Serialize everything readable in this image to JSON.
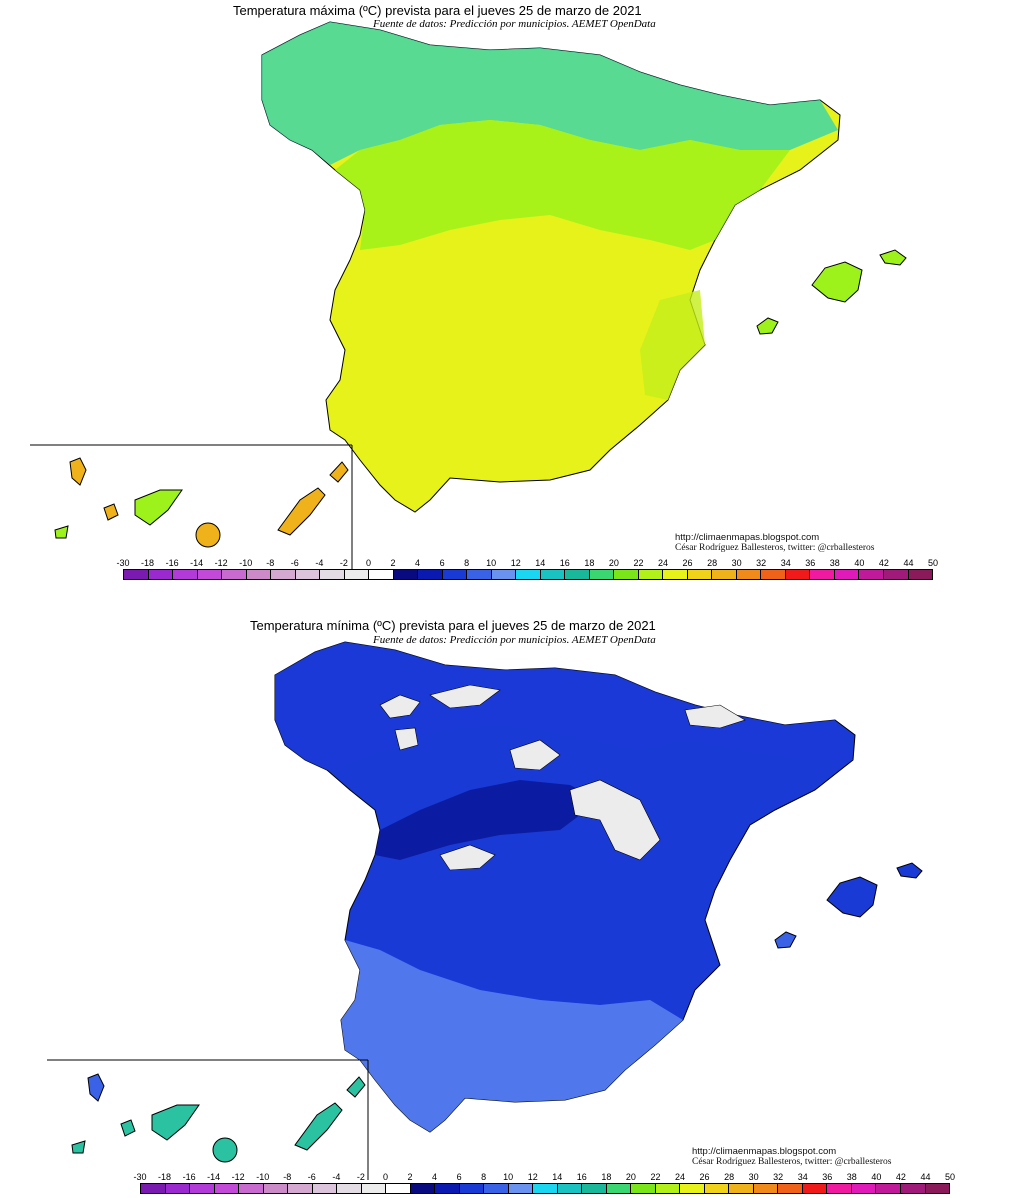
{
  "maps": [
    {
      "title": "Temperatura máxima (ºC) prevista para el jueves 25 de marzo de 2021",
      "subtitle": "Fuente de datos: Predicción por municipios. AEMET OpenData",
      "credit_url": "http://climaenmapas.blogspot.com",
      "credit_author": "César Rodríguez Ballesteros, twitter: @crballesteros",
      "dominant_ranges": [
        "14",
        "16",
        "18",
        "20",
        "22",
        "24",
        "26"
      ],
      "colors": {
        "peninsula_main": "#e6f21a",
        "north": "#3fd6a8",
        "mid": "#9cf21a",
        "canarias": "#f0b21a"
      }
    },
    {
      "title": "Temperatura mínima (ºC) prevista para el jueves 25 de marzo de 2021",
      "subtitle": "Fuente de datos: Predicción por municipios. AEMET OpenData",
      "credit_url": "http://climaenmapas.blogspot.com",
      "credit_author": "César Rodríguez Ballesteros, twitter: @crballesteros",
      "dominant_ranges": [
        "-2",
        "0",
        "2",
        "4",
        "6",
        "8"
      ],
      "colors": {
        "peninsula_main": "#1a3ad6",
        "north": "#0a1a9c",
        "south": "#5a84f0",
        "canarias": "#2ac2a0"
      }
    }
  ],
  "legend": {
    "ticks": [
      "-30",
      "-18",
      "-16",
      "-14",
      "-12",
      "-10",
      "-8",
      "-6",
      "-4",
      "-2",
      "0",
      "2",
      "4",
      "6",
      "8",
      "10",
      "12",
      "14",
      "16",
      "18",
      "20",
      "22",
      "24",
      "26",
      "28",
      "30",
      "32",
      "34",
      "36",
      "38",
      "40",
      "42",
      "44",
      "50"
    ],
    "colors": [
      "#7a1ab0",
      "#9a2ad0",
      "#b23ad8",
      "#c34ad8",
      "#c86ad0",
      "#cc8ac8",
      "#d4a8d0",
      "#dcc4dc",
      "#e4dce4",
      "#ececec",
      "#ffffff",
      "#0a0a80",
      "#0a1ab0",
      "#1a3ad6",
      "#3a62e6",
      "#6a92f0",
      "#1ad6f0",
      "#1ac2c2",
      "#1ab89a",
      "#3ad672",
      "#7ae61a",
      "#b2f01a",
      "#e6f21a",
      "#f0d21a",
      "#f0b21a",
      "#f08a1a",
      "#f0621a",
      "#f01a1a",
      "#f01aa0",
      "#e01ab8",
      "#c01a9a",
      "#a01a7a",
      "#8a1a5a"
    ]
  }
}
